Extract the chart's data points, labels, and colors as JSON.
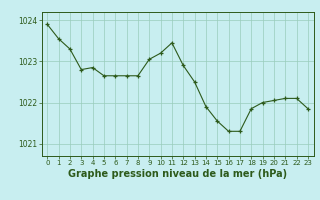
{
  "x": [
    0,
    1,
    2,
    3,
    4,
    5,
    6,
    7,
    8,
    9,
    10,
    11,
    12,
    13,
    14,
    15,
    16,
    17,
    18,
    19,
    20,
    21,
    22,
    23
  ],
  "y": [
    1023.9,
    1023.55,
    1023.3,
    1022.8,
    1022.85,
    1022.65,
    1022.65,
    1022.65,
    1022.65,
    1023.05,
    1023.2,
    1023.45,
    1022.9,
    1022.5,
    1021.9,
    1021.55,
    1021.3,
    1021.3,
    1021.85,
    1022.0,
    1022.05,
    1022.1,
    1022.1,
    1021.85
  ],
  "line_color": "#2d5a1b",
  "marker_color": "#2d5a1b",
  "bg_color": "#c8eef0",
  "plot_bg_color": "#c8eef0",
  "grid_color": "#99ccbb",
  "xlabel": "Graphe pression niveau de la mer (hPa)",
  "yticks": [
    1021,
    1022,
    1023,
    1024
  ],
  "ylim": [
    1020.7,
    1024.2
  ],
  "xlim": [
    -0.5,
    23.5
  ],
  "title_color": "#2d5a1b",
  "tick_fontsize": 5.5,
  "label_fontsize": 7.0
}
